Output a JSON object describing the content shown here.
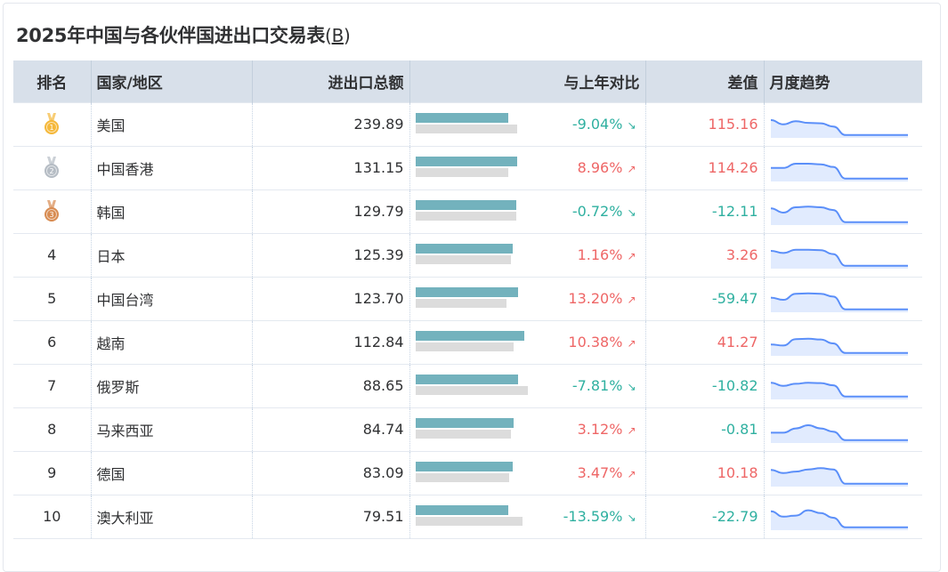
{
  "title": "2025年中国与各伙伴国进出口交易表",
  "unit": "B",
  "headers": {
    "rank": "排名",
    "country": "国家/地区",
    "total": "进出口总额",
    "yoy": "与上年对比",
    "diff": "差值",
    "trend": "月度趋势"
  },
  "colors": {
    "positive": "#ee6666",
    "negative": "#2fb0a0",
    "bar_current": "#73b2bd",
    "bar_previous": "#dcdcdc",
    "sparkline": "#5b8ff9",
    "gold": "#f5b83a",
    "silver": "#b5bcc4",
    "bronze": "#d88c52"
  },
  "rows": [
    {
      "rank": "1",
      "medal": "gold-medal-icon",
      "country": "美国",
      "total": "239.89",
      "yoy": "-9.04%",
      "yoy_value": -9.04,
      "diff": "115.16",
      "diff_value": 115.16,
      "bar_current": 0.8,
      "bar_previous": 0.88,
      "trend": [
        0.75,
        0.55,
        0.7,
        0.62,
        0.6,
        0.45,
        0.05,
        0.05,
        0.05,
        0.05,
        0.05,
        0.05
      ]
    },
    {
      "rank": "2",
      "medal": "silver-medal-icon",
      "country": "中国香港",
      "total": "131.15",
      "yoy": "8.96%",
      "yoy_value": 8.96,
      "diff": "114.26",
      "diff_value": 114.26,
      "bar_current": 0.88,
      "bar_previous": 0.8,
      "trend": [
        0.55,
        0.55,
        0.75,
        0.75,
        0.72,
        0.6,
        0.05,
        0.05,
        0.05,
        0.05,
        0.05,
        0.05
      ]
    },
    {
      "rank": "3",
      "medal": "bronze-medal-icon",
      "country": "韩国",
      "total": "129.79",
      "yoy": "-0.72%",
      "yoy_value": -0.72,
      "diff": "-12.11",
      "diff_value": -12.11,
      "bar_current": 0.87,
      "bar_previous": 0.87,
      "trend": [
        0.7,
        0.5,
        0.75,
        0.78,
        0.75,
        0.62,
        0.05,
        0.05,
        0.05,
        0.05,
        0.05,
        0.05
      ]
    },
    {
      "rank": "4",
      "medal": "",
      "country": "日本",
      "total": "125.39",
      "yoy": "1.16%",
      "yoy_value": 1.16,
      "diff": "3.26",
      "diff_value": 3.26,
      "bar_current": 0.84,
      "bar_previous": 0.83,
      "trend": [
        0.75,
        0.65,
        0.8,
        0.8,
        0.78,
        0.6,
        0.05,
        0.05,
        0.05,
        0.05,
        0.05,
        0.05
      ]
    },
    {
      "rank": "5",
      "medal": "",
      "country": "中国台湾",
      "total": "123.70",
      "yoy": "13.20%",
      "yoy_value": 13.2,
      "diff": "-59.47",
      "diff_value": -59.47,
      "bar_current": 0.89,
      "bar_previous": 0.79,
      "trend": [
        0.6,
        0.5,
        0.78,
        0.8,
        0.78,
        0.65,
        0.05,
        0.05,
        0.05,
        0.05,
        0.05,
        0.05
      ]
    },
    {
      "rank": "6",
      "medal": "",
      "country": "越南",
      "total": "112.84",
      "yoy": "10.38%",
      "yoy_value": 10.38,
      "diff": "41.27",
      "diff_value": 41.27,
      "bar_current": 0.94,
      "bar_previous": 0.85,
      "trend": [
        0.45,
        0.4,
        0.7,
        0.72,
        0.68,
        0.5,
        0.05,
        0.05,
        0.05,
        0.05,
        0.05,
        0.05
      ]
    },
    {
      "rank": "7",
      "medal": "",
      "country": "俄罗斯",
      "total": "88.65",
      "yoy": "-7.81%",
      "yoy_value": -7.81,
      "diff": "-10.82",
      "diff_value": -10.82,
      "bar_current": 0.89,
      "bar_previous": 0.97,
      "trend": [
        0.7,
        0.55,
        0.65,
        0.7,
        0.68,
        0.58,
        0.05,
        0.05,
        0.05,
        0.05,
        0.05,
        0.05
      ]
    },
    {
      "rank": "8",
      "medal": "",
      "country": "马来西亚",
      "total": "84.74",
      "yoy": "3.12%",
      "yoy_value": 3.12,
      "diff": "-0.81",
      "diff_value": -0.81,
      "bar_current": 0.85,
      "bar_previous": 0.83,
      "trend": [
        0.4,
        0.4,
        0.6,
        0.75,
        0.6,
        0.45,
        0.05,
        0.05,
        0.05,
        0.05,
        0.05,
        0.05
      ]
    },
    {
      "rank": "9",
      "medal": "",
      "country": "德国",
      "total": "83.09",
      "yoy": "3.47%",
      "yoy_value": 3.47,
      "diff": "10.18",
      "diff_value": 10.18,
      "bar_current": 0.84,
      "bar_previous": 0.81,
      "trend": [
        0.7,
        0.55,
        0.62,
        0.72,
        0.78,
        0.72,
        0.05,
        0.05,
        0.05,
        0.05,
        0.05,
        0.05
      ]
    },
    {
      "rank": "10",
      "medal": "",
      "country": "澳大利亚",
      "total": "79.51",
      "yoy": "-13.59%",
      "yoy_value": -13.59,
      "diff": "-22.79",
      "diff_value": -22.79,
      "bar_current": 0.8,
      "bar_previous": 0.93,
      "trend": [
        0.8,
        0.55,
        0.6,
        0.85,
        0.72,
        0.5,
        0.05,
        0.05,
        0.05,
        0.05,
        0.05,
        0.05
      ]
    }
  ]
}
